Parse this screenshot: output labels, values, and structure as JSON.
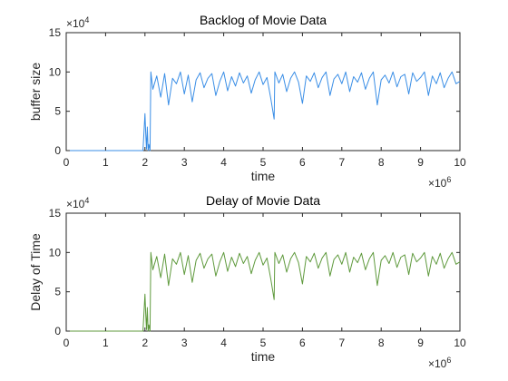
{
  "figure": {
    "panel_count": 2
  },
  "chart_data": [
    {
      "type": "line",
      "title": "Backlog of Movie Data",
      "xlabel": "time",
      "ylabel": "buffer size",
      "xlim": [
        0,
        10000000
      ],
      "ylim": [
        0,
        150000
      ],
      "x_ticks": [
        0,
        1000000,
        2000000,
        3000000,
        4000000,
        5000000,
        6000000,
        7000000,
        8000000,
        9000000,
        10000000
      ],
      "x_tick_labels": [
        "0",
        "1",
        "2",
        "3",
        "4",
        "5",
        "6",
        "7",
        "8",
        "9",
        "10"
      ],
      "y_ticks": [
        0,
        50000,
        100000,
        150000
      ],
      "y_tick_labels": [
        "0",
        "5",
        "10",
        "15"
      ],
      "x_multiplier": "×10",
      "x_exponent": "6",
      "y_multiplier": "×10",
      "y_exponent": "4",
      "grid": false,
      "series": [
        {
          "color": "#3a8ee6",
          "x": [
            0,
            1800000,
            1950000,
            2000000,
            2020000,
            2040000,
            2060000,
            2080000,
            2100000,
            2130000,
            2150000,
            2200000,
            2300000,
            2400000,
            2500000,
            2600000,
            2700000,
            2800000,
            2900000,
            3000000,
            3100000,
            3200000,
            3300000,
            3400000,
            3500000,
            3600000,
            3700000,
            3800000,
            3900000,
            4000000,
            4100000,
            4200000,
            4300000,
            4400000,
            4500000,
            4600000,
            4700000,
            4800000,
            4900000,
            5000000,
            5100000,
            5200000,
            5280000,
            5300000,
            5400000,
            5500000,
            5600000,
            5700000,
            5800000,
            5900000,
            6000000,
            6100000,
            6200000,
            6300000,
            6400000,
            6500000,
            6600000,
            6700000,
            6800000,
            6900000,
            7000000,
            7100000,
            7200000,
            7300000,
            7400000,
            7500000,
            7600000,
            7700000,
            7800000,
            7900000,
            8000000,
            8100000,
            8200000,
            8300000,
            8400000,
            8500000,
            8600000,
            8700000,
            8800000,
            8900000,
            9000000,
            9100000,
            9200000,
            9300000,
            9400000,
            9500000,
            9600000,
            9700000,
            9800000,
            9900000,
            10000000
          ],
          "y": [
            0,
            0,
            0,
            47000,
            20000,
            2000,
            30000,
            0,
            8000,
            0,
            100000,
            78000,
            95000,
            68000,
            98000,
            58000,
            92000,
            85000,
            100000,
            72000,
            96000,
            62000,
            90000,
            99000,
            80000,
            92000,
            98000,
            70000,
            88000,
            100000,
            76000,
            94000,
            82000,
            99000,
            86000,
            95000,
            73000,
            90000,
            100000,
            84000,
            93000,
            65000,
            40000,
            100000,
            86000,
            97000,
            75000,
            92000,
            100000,
            87000,
            60000,
            95000,
            88000,
            99000,
            80000,
            93000,
            100000,
            70000,
            91000,
            97000,
            85000,
            100000,
            75000,
            94000,
            87000,
            99000,
            78000,
            92000,
            100000,
            58000,
            90000,
            96000,
            86000,
            100000,
            81000,
            94000,
            97000,
            72000,
            99000,
            88000,
            93000,
            100000,
            70000,
            95000,
            85000,
            99000,
            80000,
            92000,
            100000,
            85000,
            88000
          ]
        }
      ]
    },
    {
      "type": "line",
      "title": "Delay of Movie Data",
      "xlabel": "time",
      "ylabel": "Delay of Time",
      "xlim": [
        0,
        10000000
      ],
      "ylim": [
        0,
        150000
      ],
      "x_ticks": [
        0,
        1000000,
        2000000,
        3000000,
        4000000,
        5000000,
        6000000,
        7000000,
        8000000,
        9000000,
        10000000
      ],
      "x_tick_labels": [
        "0",
        "1",
        "2",
        "3",
        "4",
        "5",
        "6",
        "7",
        "8",
        "9",
        "10"
      ],
      "y_ticks": [
        0,
        50000,
        100000,
        150000
      ],
      "y_tick_labels": [
        "0",
        "5",
        "10",
        "15"
      ],
      "x_multiplier": "×10",
      "x_exponent": "6",
      "y_multiplier": "×10",
      "y_exponent": "4",
      "grid": false,
      "series": [
        {
          "color": "#5f9a3d",
          "x": [
            0,
            1800000,
            1950000,
            2000000,
            2020000,
            2040000,
            2060000,
            2080000,
            2100000,
            2130000,
            2150000,
            2200000,
            2300000,
            2400000,
            2500000,
            2600000,
            2700000,
            2800000,
            2900000,
            3000000,
            3100000,
            3200000,
            3300000,
            3400000,
            3500000,
            3600000,
            3700000,
            3800000,
            3900000,
            4000000,
            4100000,
            4200000,
            4300000,
            4400000,
            4500000,
            4600000,
            4700000,
            4800000,
            4900000,
            5000000,
            5100000,
            5200000,
            5280000,
            5300000,
            5400000,
            5500000,
            5600000,
            5700000,
            5800000,
            5900000,
            6000000,
            6100000,
            6200000,
            6300000,
            6400000,
            6500000,
            6600000,
            6700000,
            6800000,
            6900000,
            7000000,
            7100000,
            7200000,
            7300000,
            7400000,
            7500000,
            7600000,
            7700000,
            7800000,
            7900000,
            8000000,
            8100000,
            8200000,
            8300000,
            8400000,
            8500000,
            8600000,
            8700000,
            8800000,
            8900000,
            9000000,
            9100000,
            9200000,
            9300000,
            9400000,
            9500000,
            9600000,
            9700000,
            9800000,
            9900000,
            10000000
          ],
          "y": [
            0,
            0,
            0,
            47000,
            20000,
            2000,
            30000,
            0,
            8000,
            0,
            100000,
            78000,
            95000,
            68000,
            98000,
            58000,
            92000,
            85000,
            100000,
            72000,
            96000,
            62000,
            90000,
            99000,
            80000,
            92000,
            98000,
            70000,
            88000,
            100000,
            76000,
            94000,
            82000,
            99000,
            86000,
            95000,
            73000,
            90000,
            100000,
            84000,
            93000,
            65000,
            40000,
            100000,
            86000,
            97000,
            75000,
            92000,
            100000,
            87000,
            60000,
            95000,
            88000,
            99000,
            80000,
            93000,
            100000,
            70000,
            91000,
            97000,
            85000,
            100000,
            75000,
            94000,
            87000,
            99000,
            78000,
            92000,
            100000,
            58000,
            90000,
            96000,
            86000,
            100000,
            81000,
            94000,
            97000,
            72000,
            99000,
            88000,
            93000,
            100000,
            70000,
            95000,
            85000,
            99000,
            80000,
            92000,
            100000,
            85000,
            88000
          ]
        }
      ]
    }
  ]
}
